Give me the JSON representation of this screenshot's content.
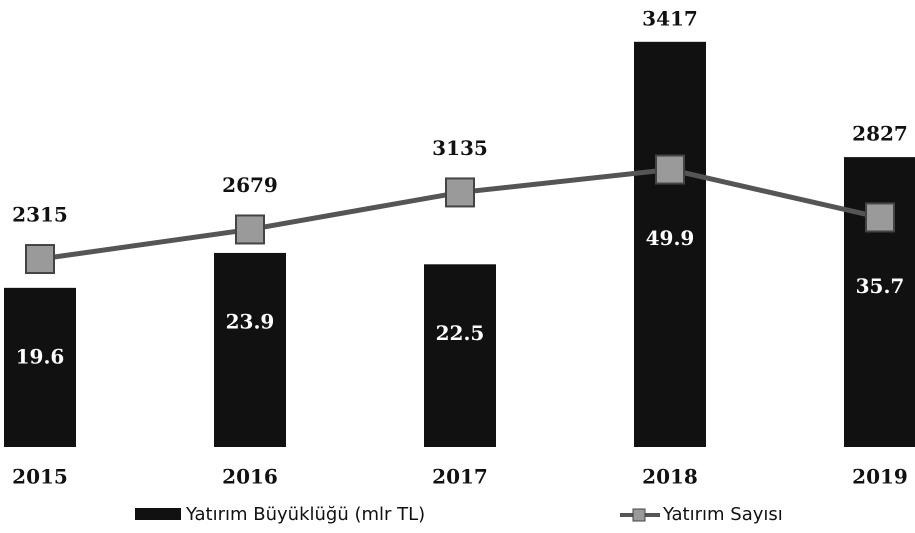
{
  "chart_data": {
    "type": "bar-line",
    "categories": [
      "2015",
      "2016",
      "2017",
      "2018",
      "2019"
    ],
    "series": [
      {
        "name": "Yatırım Büyüklüğü (mlr TL)",
        "type": "bar",
        "color": "#111111",
        "values": [
          19.6,
          23.9,
          22.5,
          49.9,
          35.7
        ]
      },
      {
        "name": "Yatırım Sayısı",
        "type": "line",
        "axis": "y2",
        "color": "#555555",
        "marker_color": "#9a9a9a",
        "values": [
          2315,
          2679,
          3135,
          3417,
          2827
        ]
      }
    ],
    "ylim": [
      0,
      50
    ],
    "y2lim": [
      0,
      5000
    ],
    "legend": "bottom"
  }
}
